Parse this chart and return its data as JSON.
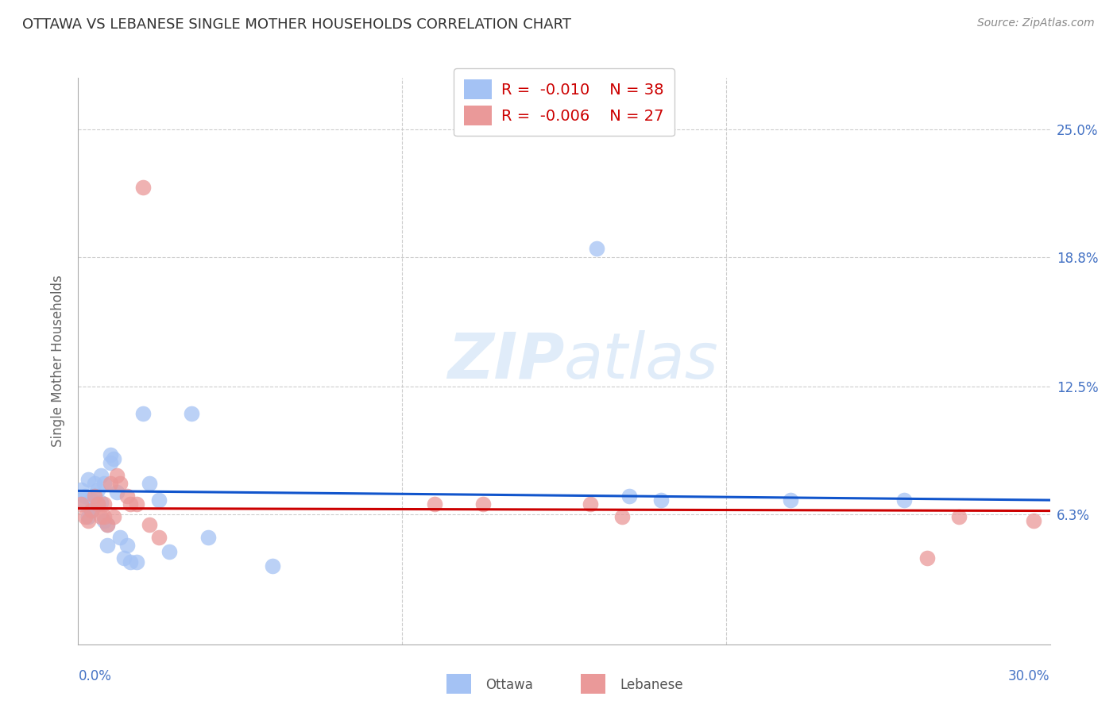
{
  "title": "OTTAWA VS LEBANESE SINGLE MOTHER HOUSEHOLDS CORRELATION CHART",
  "source": "Source: ZipAtlas.com",
  "ylabel": "Single Mother Households",
  "xlim": [
    0.0,
    0.3
  ],
  "ylim": [
    0.0,
    0.275
  ],
  "ytick_labels": [
    "6.3%",
    "12.5%",
    "18.8%",
    "25.0%"
  ],
  "ytick_values": [
    0.063,
    0.125,
    0.188,
    0.25
  ],
  "ottawa_color": "#a4c2f4",
  "lebanese_color": "#ea9999",
  "ottawa_line_color": "#1155cc",
  "lebanese_line_color": "#cc0000",
  "ottawa_R": -0.01,
  "ottawa_N": 38,
  "lebanese_R": -0.006,
  "lebanese_N": 27,
  "ottawa_x": [
    0.001,
    0.002,
    0.002,
    0.003,
    0.003,
    0.004,
    0.004,
    0.005,
    0.005,
    0.006,
    0.006,
    0.007,
    0.007,
    0.008,
    0.008,
    0.009,
    0.009,
    0.01,
    0.01,
    0.011,
    0.012,
    0.013,
    0.014,
    0.015,
    0.016,
    0.018,
    0.02,
    0.022,
    0.025,
    0.028,
    0.035,
    0.04,
    0.06,
    0.16,
    0.17,
    0.18,
    0.22,
    0.255
  ],
  "ottawa_y": [
    0.075,
    0.072,
    0.068,
    0.08,
    0.062,
    0.07,
    0.065,
    0.078,
    0.068,
    0.075,
    0.068,
    0.082,
    0.069,
    0.078,
    0.06,
    0.058,
    0.048,
    0.092,
    0.088,
    0.09,
    0.074,
    0.052,
    0.042,
    0.048,
    0.04,
    0.04,
    0.112,
    0.078,
    0.07,
    0.045,
    0.112,
    0.052,
    0.038,
    0.192,
    0.072,
    0.07,
    0.07,
    0.07
  ],
  "lebanese_x": [
    0.001,
    0.002,
    0.003,
    0.004,
    0.005,
    0.006,
    0.007,
    0.008,
    0.008,
    0.009,
    0.01,
    0.011,
    0.012,
    0.013,
    0.015,
    0.016,
    0.018,
    0.02,
    0.022,
    0.025,
    0.11,
    0.125,
    0.158,
    0.168,
    0.262,
    0.272,
    0.295
  ],
  "lebanese_y": [
    0.068,
    0.062,
    0.06,
    0.065,
    0.072,
    0.068,
    0.062,
    0.068,
    0.062,
    0.058,
    0.078,
    0.062,
    0.082,
    0.078,
    0.072,
    0.068,
    0.068,
    0.222,
    0.058,
    0.052,
    0.068,
    0.068,
    0.068,
    0.062,
    0.042,
    0.062,
    0.06
  ],
  "ott_line_y0": 0.0745,
  "ott_line_y1": 0.07,
  "leb_line_y0": 0.066,
  "leb_line_y1": 0.0648
}
